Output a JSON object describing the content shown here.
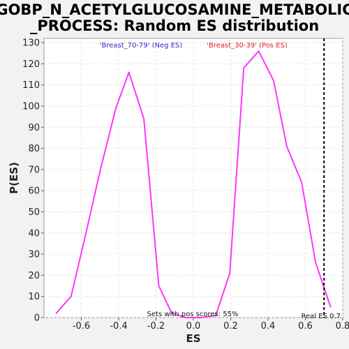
{
  "chart_data": {
    "type": "line",
    "title_lines": [
      "GOBP_N_ACETYLGLUCOSAMINE_METABOLIC",
      "_PROCESS: Random ES distribution"
    ],
    "xlabel": "ES",
    "ylabel": "P(ES)",
    "xlim": [
      -0.8,
      0.8
    ],
    "ylim": [
      0,
      132
    ],
    "xticks": [
      -0.6,
      -0.4,
      -0.2,
      0.0,
      0.2,
      0.4,
      0.6,
      0.8
    ],
    "xtick_labels": [
      "-0.6",
      "-0.4",
      "-0.2",
      "0.0",
      "0.2",
      "0.4",
      "0.6",
      "0.8"
    ],
    "yticks": [
      0,
      10,
      20,
      30,
      40,
      50,
      60,
      70,
      80,
      90,
      100,
      110,
      120,
      130
    ],
    "ytick_labels": [
      "0",
      "10",
      "20",
      "30",
      "40",
      "50",
      "60",
      "70",
      "80",
      "90",
      "100",
      "110",
      "120",
      "130"
    ],
    "grid": true,
    "series": [
      {
        "color": "#ff33ff",
        "x": [
          -0.735,
          -0.655,
          -0.575,
          -0.495,
          -0.415,
          -0.345,
          -0.265,
          -0.185,
          -0.115,
          -0.04,
          0.04,
          0.12,
          0.195,
          0.27,
          0.35,
          0.43,
          0.5,
          0.58,
          0.655,
          0.735
        ],
        "y": [
          2,
          10,
          40,
          71,
          99,
          116,
          94,
          15,
          2,
          0,
          0,
          1,
          21,
          118,
          126,
          112,
          81,
          64,
          26,
          5
        ]
      }
    ],
    "legend": {
      "placement": "top",
      "neg_label": "'Breast_70-79' (Neg ES)",
      "neg_color": "#2a2acc",
      "pos_label": "'Breast_30-39' (Pos ES)",
      "pos_color": "#e02020"
    },
    "real_es": {
      "x": 0.7,
      "label": "Real ES 0.7",
      "color": "#000000"
    },
    "annotation": "Sets with pos scores: 55%"
  }
}
